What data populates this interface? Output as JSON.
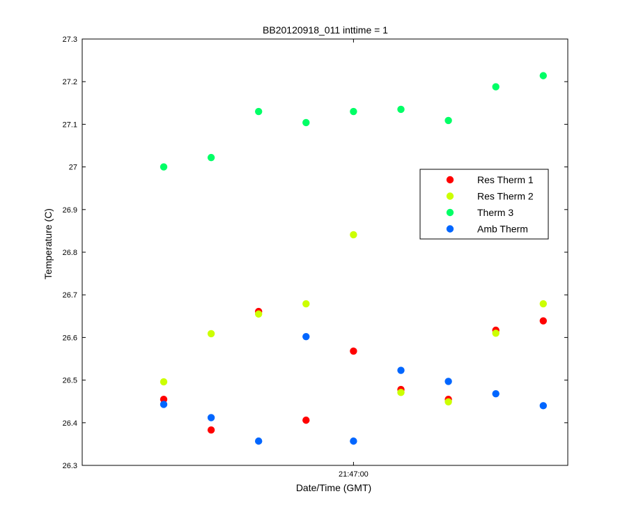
{
  "chart_data": {
    "type": "scatter",
    "title": "BB20120918_011 inttime = 1",
    "xlabel": "Date/Time (GMT)",
    "ylabel": "Temperature (C)",
    "ylim": [
      26.3,
      27.3
    ],
    "yticks": [
      "26.3",
      "26.4",
      "26.5",
      "26.6",
      "26.7",
      "26.8",
      "26.9",
      "27",
      "27.1",
      "27.2",
      "27.3"
    ],
    "xticks": [
      {
        "index": 5,
        "label": "21:47:00"
      }
    ],
    "grid": false,
    "legend_position": "right",
    "series": [
      {
        "name": "Res Therm 1",
        "color": "#ff0000",
        "x": [
          1,
          2,
          3,
          4,
          5,
          6,
          7,
          8,
          9
        ],
        "y": [
          26.455,
          26.383,
          26.661,
          26.406,
          26.568,
          26.478,
          26.455,
          26.617,
          26.639
        ]
      },
      {
        "name": "Res Therm 2",
        "color": "#ccff00",
        "x": [
          1,
          2,
          3,
          4,
          5,
          6,
          7,
          8,
          9
        ],
        "y": [
          26.496,
          26.609,
          26.655,
          26.679,
          26.841,
          26.471,
          26.449,
          26.61,
          26.679
        ]
      },
      {
        "name": "Therm 3",
        "color": "#00ff66",
        "x": [
          1,
          2,
          3,
          4,
          5,
          6,
          7,
          8,
          9
        ],
        "y": [
          27.0,
          27.022,
          27.13,
          27.104,
          27.13,
          27.135,
          27.109,
          27.188,
          27.214
        ]
      },
      {
        "name": "Amb Therm",
        "color": "#0066ff",
        "x": [
          1,
          2,
          3,
          4,
          5,
          6,
          7,
          8,
          9
        ],
        "y": [
          26.443,
          26.412,
          26.357,
          26.602,
          26.357,
          26.523,
          26.497,
          26.468,
          26.44
        ]
      }
    ]
  }
}
